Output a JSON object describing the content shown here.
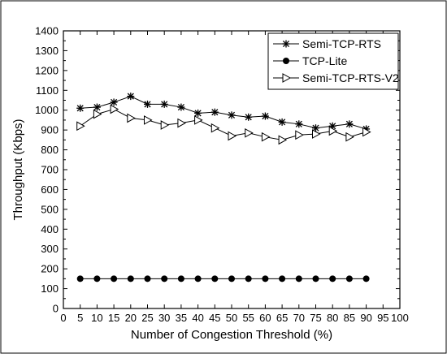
{
  "chart_data": {
    "type": "line",
    "title": "",
    "xlabel": "Number of Congestion Threshold (%)",
    "ylabel": "Throughput (Kbps)",
    "xlim": [
      0,
      100
    ],
    "ylim": [
      0,
      1400
    ],
    "xticks": [
      0,
      5,
      10,
      15,
      20,
      25,
      30,
      35,
      40,
      45,
      50,
      55,
      60,
      65,
      70,
      75,
      80,
      85,
      90,
      95,
      100
    ],
    "yticks": [
      0,
      100,
      200,
      300,
      400,
      500,
      600,
      700,
      800,
      900,
      1000,
      1100,
      1200,
      1300,
      1400
    ],
    "grid": false,
    "legend_position": "top-right",
    "x": [
      5,
      10,
      15,
      20,
      25,
      30,
      35,
      40,
      45,
      50,
      55,
      60,
      65,
      70,
      75,
      80,
      85,
      90
    ],
    "series": [
      {
        "name": "Semi-TCP-RTS",
        "marker": "star",
        "values": [
          1010,
          1015,
          1040,
          1070,
          1030,
          1030,
          1015,
          985,
          990,
          975,
          965,
          970,
          940,
          930,
          910,
          920,
          930,
          905
        ]
      },
      {
        "name": "TCP-Lite",
        "marker": "filled-circle",
        "values": [
          150,
          150,
          150,
          150,
          150,
          150,
          150,
          150,
          150,
          150,
          150,
          150,
          150,
          150,
          150,
          150,
          150,
          150
        ]
      },
      {
        "name": "Semi-TCP-RTS-V2",
        "marker": "open-right-triangle",
        "values": [
          920,
          980,
          1005,
          960,
          950,
          925,
          935,
          950,
          910,
          870,
          885,
          865,
          850,
          875,
          880,
          895,
          865,
          890
        ]
      }
    ]
  }
}
